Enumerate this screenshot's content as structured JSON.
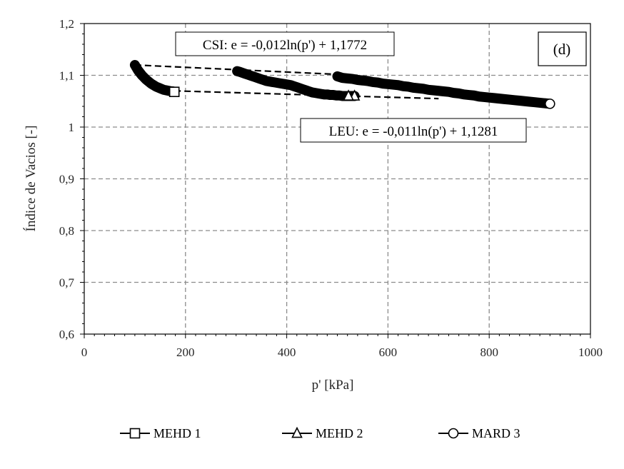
{
  "chart_data": {
    "type": "scatter",
    "title": "",
    "xlabel": "p' [kPa]",
    "ylabel": "Índice de Vacios [-]",
    "xlim": [
      0,
      1000
    ],
    "ylim": [
      0.6,
      1.2
    ],
    "xticks": [
      0,
      200,
      400,
      600,
      800,
      1000
    ],
    "xtick_labels": [
      "0",
      "200",
      "400",
      "600",
      "800",
      "1000"
    ],
    "yticks": [
      0.6,
      0.7,
      0.8,
      0.9,
      1.0,
      1.1,
      1.2
    ],
    "ytick_labels": [
      "0,6",
      "0,7",
      "0,8",
      "0,9",
      "1",
      "1,1",
      "1,2"
    ],
    "grid": true,
    "legend_position": "bottom",
    "panel_label": "(d)",
    "series": [
      {
        "name": "MEHD 1",
        "marker": "square",
        "x": [
          100,
          103,
          106,
          110,
          114,
          118,
          122,
          127,
          132,
          137,
          142,
          147,
          152,
          157,
          162,
          167,
          172,
          175,
          178
        ],
        "y": [
          1.12,
          1.115,
          1.11,
          1.105,
          1.1,
          1.096,
          1.092,
          1.088,
          1.084,
          1.081,
          1.078,
          1.076,
          1.074,
          1.072,
          1.071,
          1.07,
          1.069,
          1.069,
          1.068
        ]
      },
      {
        "name": "MEHD 2",
        "marker": "triangle",
        "x": [
          302,
          306,
          312,
          318,
          324,
          330,
          336,
          342,
          348,
          354,
          360,
          366,
          372,
          378,
          384,
          390,
          396,
          402,
          408,
          414,
          420,
          426,
          432,
          438,
          444,
          450,
          456,
          462,
          468,
          474,
          480,
          486,
          492,
          498,
          504,
          510,
          516,
          522,
          528,
          534
        ],
        "y": [
          1.108,
          1.107,
          1.105,
          1.103,
          1.101,
          1.099,
          1.097,
          1.095,
          1.093,
          1.091,
          1.089,
          1.088,
          1.087,
          1.086,
          1.085,
          1.084,
          1.083,
          1.082,
          1.081,
          1.079,
          1.077,
          1.075,
          1.073,
          1.071,
          1.069,
          1.067,
          1.066,
          1.065,
          1.064,
          1.063,
          1.063,
          1.062,
          1.062,
          1.061,
          1.061,
          1.06,
          1.06,
          1.06,
          1.06,
          1.06
        ]
      },
      {
        "name": "MARD 3",
        "marker": "circle",
        "x": [
          500,
          510,
          520,
          530,
          540,
          550,
          560,
          570,
          580,
          590,
          600,
          610,
          620,
          630,
          640,
          650,
          660,
          670,
          680,
          690,
          700,
          710,
          720,
          730,
          740,
          750,
          760,
          770,
          780,
          790,
          800,
          810,
          820,
          830,
          840,
          850,
          860,
          870,
          880,
          890,
          900,
          910,
          920
        ],
        "y": [
          1.098,
          1.095,
          1.094,
          1.093,
          1.091,
          1.09,
          1.089,
          1.087,
          1.086,
          1.084,
          1.083,
          1.082,
          1.081,
          1.079,
          1.078,
          1.076,
          1.075,
          1.074,
          1.072,
          1.071,
          1.07,
          1.069,
          1.068,
          1.066,
          1.065,
          1.063,
          1.062,
          1.061,
          1.059,
          1.058,
          1.057,
          1.056,
          1.055,
          1.054,
          1.053,
          1.052,
          1.051,
          1.05,
          1.049,
          1.048,
          1.047,
          1.046,
          1.045
        ]
      }
    ],
    "fit_lines": [
      {
        "label": "CSI: e = -0,012ln(p') + 1,1772",
        "x": [
          100,
          540
        ],
        "y": [
          1.12,
          1.1
        ]
      },
      {
        "label": "LEU: e = -0,011ln(p') + 1,1281",
        "x": [
          178,
          520,
          700
        ],
        "y": [
          1.07,
          1.06,
          1.055
        ]
      }
    ]
  }
}
